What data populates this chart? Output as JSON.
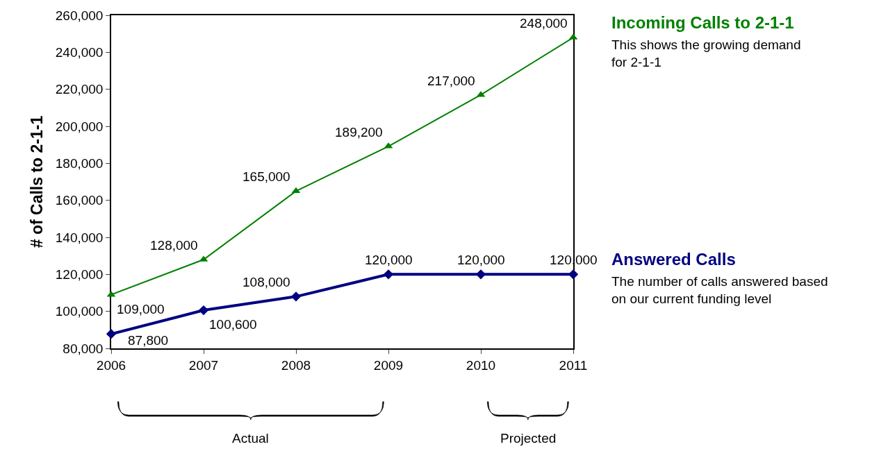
{
  "chart_data": {
    "type": "line",
    "ylabel": "# of Calls to 2-1-1",
    "x": [
      2006,
      2007,
      2008,
      2009,
      2010,
      2011
    ],
    "series": [
      {
        "name": "Incoming Calls to 2-1-1",
        "color": "#008000",
        "marker": "triangle",
        "values": [
          109000,
          128000,
          165000,
          189200,
          217000,
          248000
        ],
        "value_labels": [
          "109,000",
          "128,000",
          "165,000",
          "189,200",
          "217,000",
          "248,000"
        ]
      },
      {
        "name": "Answered Calls",
        "color": "#000080",
        "marker": "diamond",
        "values": [
          87800,
          100600,
          108000,
          120000,
          120000,
          120000
        ],
        "value_labels": [
          "87,800",
          "100,600",
          "108,000",
          "120,000",
          "120,000",
          "120,000"
        ]
      }
    ],
    "annotations": [
      "This shows the growing demand for 2-1-1",
      "The number of calls answered based on our current funding level",
      "Actual",
      "Projected"
    ],
    "xlim": [
      2006,
      2011
    ],
    "xticks": [
      2006,
      2007,
      2008,
      2009,
      2010,
      2011
    ],
    "ylim": [
      80000,
      260000
    ],
    "yticks": [
      {
        "value": 80000,
        "label": "80,000"
      },
      {
        "value": 100000,
        "label": "100,000"
      },
      {
        "value": 120000,
        "label": "120,000"
      },
      {
        "value": 140000,
        "label": "140,000"
      },
      {
        "value": 160000,
        "label": "160,000"
      },
      {
        "value": 180000,
        "label": "180,000"
      },
      {
        "value": 200000,
        "label": "200,000"
      },
      {
        "value": 220000,
        "label": "220,000"
      },
      {
        "value": 240000,
        "label": "240,000"
      },
      {
        "value": 260000,
        "label": "260,000"
      }
    ],
    "legend": false
  }
}
